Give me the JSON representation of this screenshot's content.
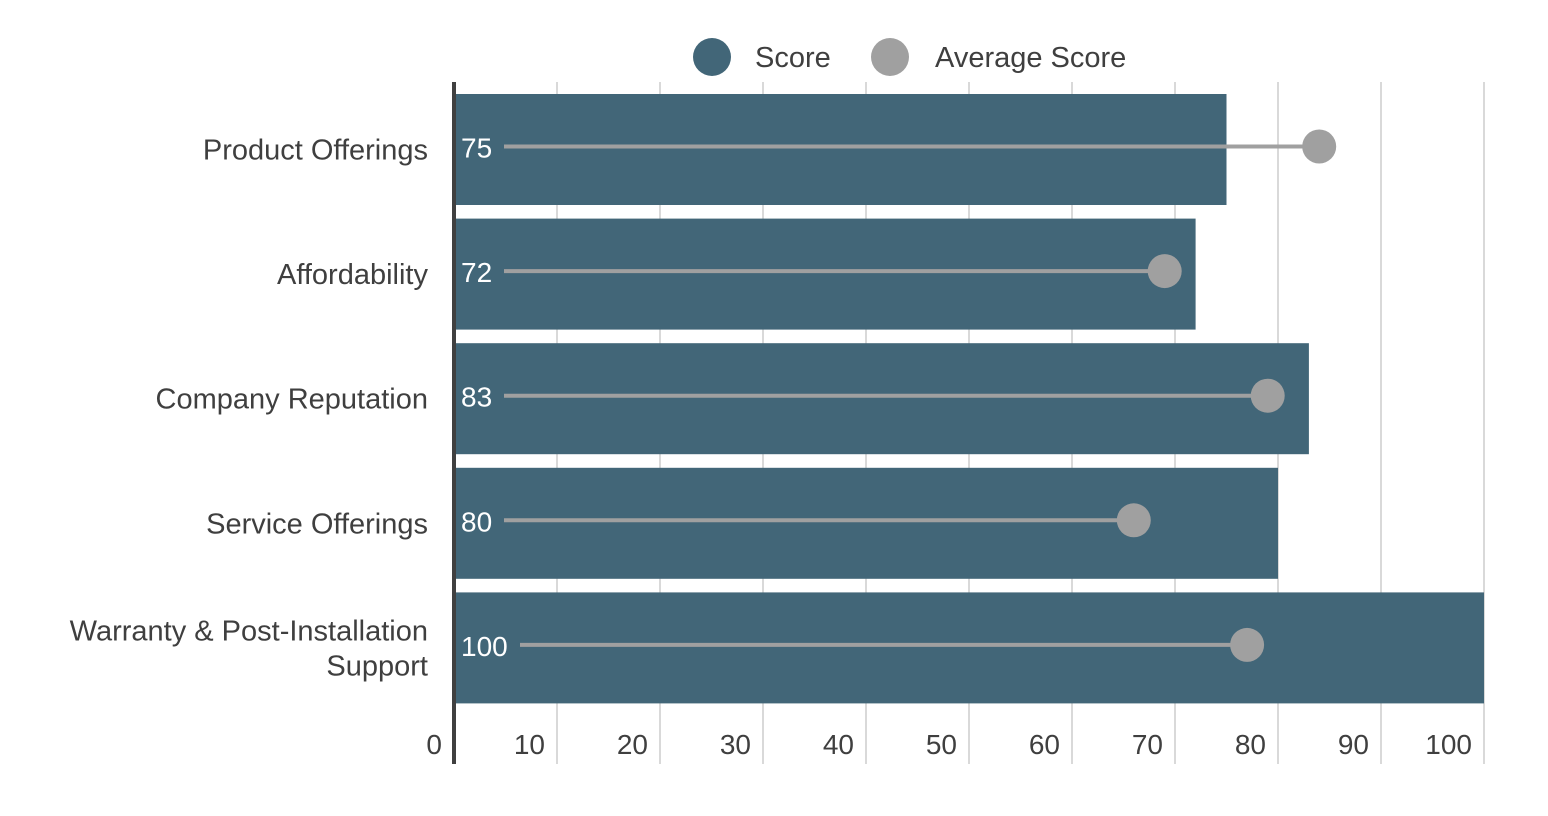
{
  "chart_data": {
    "type": "bar",
    "orientation": "horizontal",
    "categories": [
      "Product Offerings",
      "Affordability",
      "Company Reputation",
      "Service Offerings",
      "Warranty & Post-Installation Support"
    ],
    "category_lines": [
      [
        "Product Offerings"
      ],
      [
        "Affordability"
      ],
      [
        "Company Reputation"
      ],
      [
        "Service Offerings"
      ],
      [
        "Warranty & Post-Installation",
        "Support"
      ]
    ],
    "series": [
      {
        "name": "Score",
        "values": [
          75,
          72,
          83,
          80,
          100
        ],
        "color": "#426678",
        "mark": "bar"
      },
      {
        "name": "Average Score",
        "values": [
          84,
          69,
          79,
          66,
          77
        ],
        "color": "#a0a0a0",
        "mark": "lollipop"
      }
    ],
    "data_labels": [
      "75",
      "72",
      "83",
      "80",
      "100"
    ],
    "xlim": [
      0,
      100
    ],
    "xticks": [
      0,
      10,
      20,
      30,
      40,
      50,
      60,
      70,
      80,
      90,
      100
    ],
    "xtick_labels": [
      "0",
      "10",
      "20",
      "30",
      "40",
      "50",
      "60",
      "70",
      "80",
      "90",
      "100"
    ],
    "title": "",
    "xlabel": "",
    "ylabel": "",
    "grid": true,
    "legend_position": "top-center",
    "colors": {
      "gridline": "#d9d9d9",
      "axis": "#404040",
      "text": "#3f3f3f",
      "bar_label": "#ffffff"
    }
  }
}
